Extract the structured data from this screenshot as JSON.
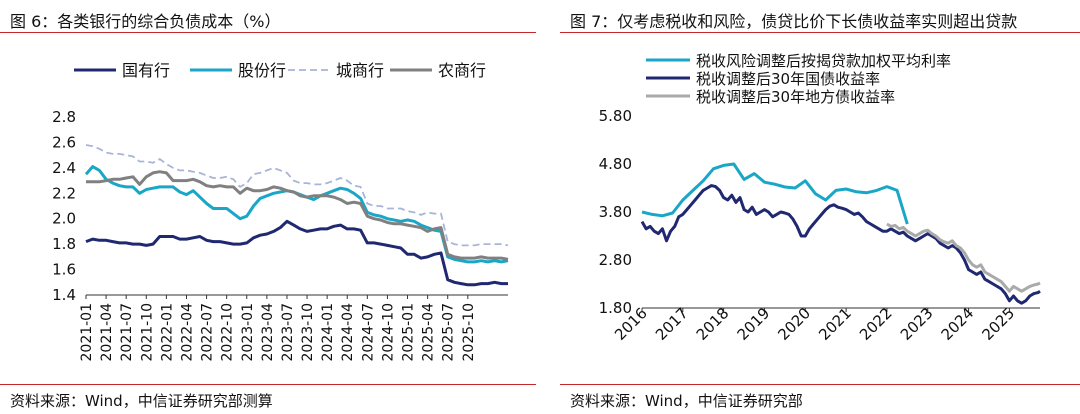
{
  "left": {
    "title": "图 6：各类银行的综合负债成本（%）",
    "source": "资料来源：Wind，中信证券研究部测算",
    "chart_data": {
      "type": "line",
      "title": "各类银行的综合负债成本（%）",
      "xlabel": "",
      "ylabel": "",
      "ylim": [
        1.4,
        2.8
      ],
      "yticks": [
        "2.8",
        "2.6",
        "2.4",
        "2.2",
        "2.0",
        "1.8",
        "1.6",
        "1.4"
      ],
      "xticks": [
        "2021-01",
        "2021-04",
        "2021-07",
        "2021-10",
        "2022-01",
        "2022-04",
        "2022-07",
        "2022-10",
        "2023-01",
        "2023-04",
        "2023-07",
        "2023-10",
        "2024-01",
        "2024-04",
        "2024-07",
        "2024-10",
        "2025-01",
        "2025-04",
        "2025-07",
        "2025-10"
      ],
      "legend_position": "top",
      "series": [
        {
          "name": "国有行",
          "color": "#1f2870",
          "style": "solid",
          "values": [
            1.82,
            1.84,
            1.83,
            1.83,
            1.82,
            1.81,
            1.81,
            1.8,
            1.8,
            1.79,
            1.8,
            1.86,
            1.86,
            1.86,
            1.84,
            1.84,
            1.85,
            1.86,
            1.83,
            1.82,
            1.82,
            1.81,
            1.8,
            1.8,
            1.81,
            1.85,
            1.87,
            1.88,
            1.9,
            1.93,
            1.98,
            1.95,
            1.92,
            1.9,
            1.91,
            1.92,
            1.92,
            1.94,
            1.95,
            1.92,
            1.92,
            1.91,
            1.81,
            1.81,
            1.8,
            1.79,
            1.78,
            1.77,
            1.72,
            1.72,
            1.69,
            1.7,
            1.72,
            1.73,
            1.52,
            1.5,
            1.49,
            1.48,
            1.48,
            1.49,
            1.49,
            1.5,
            1.49,
            1.49
          ]
        },
        {
          "name": "股份行",
          "color": "#1aa6c6",
          "style": "solid",
          "values": [
            2.35,
            2.41,
            2.38,
            2.31,
            2.28,
            2.26,
            2.25,
            2.25,
            2.2,
            2.23,
            2.24,
            2.25,
            2.25,
            2.25,
            2.21,
            2.19,
            2.22,
            2.17,
            2.12,
            2.08,
            2.08,
            2.08,
            2.04,
            2.0,
            2.02,
            2.1,
            2.16,
            2.18,
            2.2,
            2.21,
            2.22,
            2.21,
            2.19,
            2.17,
            2.15,
            2.18,
            2.2,
            2.22,
            2.24,
            2.23,
            2.2,
            2.16,
            2.05,
            2.03,
            2.02,
            2.0,
            1.99,
            1.98,
            1.99,
            1.98,
            1.95,
            1.93,
            1.91,
            1.9,
            1.7,
            1.68,
            1.67,
            1.66,
            1.66,
            1.67,
            1.66,
            1.67,
            1.66,
            1.67
          ]
        },
        {
          "name": "城商行",
          "color": "#a9b5d8",
          "style": "dashed",
          "values": [
            2.58,
            2.57,
            2.55,
            2.52,
            2.51,
            2.51,
            2.5,
            2.49,
            2.45,
            2.45,
            2.44,
            2.47,
            2.43,
            2.4,
            2.38,
            2.38,
            2.37,
            2.36,
            2.34,
            2.32,
            2.32,
            2.33,
            2.31,
            2.25,
            2.28,
            2.35,
            2.36,
            2.38,
            2.4,
            2.38,
            2.36,
            2.3,
            2.28,
            2.28,
            2.27,
            2.27,
            2.28,
            2.3,
            2.32,
            2.3,
            2.26,
            2.25,
            2.12,
            2.1,
            2.1,
            2.08,
            2.08,
            2.08,
            2.06,
            2.05,
            2.03,
            2.05,
            2.04,
            2.04,
            1.82,
            1.8,
            1.79,
            1.79,
            1.79,
            1.8,
            1.8,
            1.8,
            1.8,
            1.79
          ]
        },
        {
          "name": "农商行",
          "color": "#808080",
          "style": "solid",
          "values": [
            2.29,
            2.29,
            2.29,
            2.3,
            2.31,
            2.31,
            2.32,
            2.33,
            2.27,
            2.33,
            2.36,
            2.37,
            2.36,
            2.3,
            2.3,
            2.3,
            2.31,
            2.29,
            2.26,
            2.25,
            2.26,
            2.25,
            2.25,
            2.2,
            2.24,
            2.22,
            2.22,
            2.23,
            2.25,
            2.24,
            2.22,
            2.21,
            2.18,
            2.17,
            2.18,
            2.18,
            2.18,
            2.17,
            2.15,
            2.12,
            2.13,
            2.12,
            2.02,
            2.0,
            1.99,
            1.97,
            1.96,
            1.96,
            1.95,
            1.94,
            1.93,
            1.9,
            1.92,
            1.93,
            1.72,
            1.7,
            1.69,
            1.69,
            1.69,
            1.7,
            1.69,
            1.69,
            1.69,
            1.68
          ]
        }
      ]
    }
  },
  "right": {
    "title": "图 7：仅考虑税收和风险，债贷比价下长债收益率实则超出贷款",
    "source": "资料来源：Wind，中信证券研究部",
    "chart_data": {
      "type": "line",
      "title": "仅考虑税收和风险，债贷比价下长债收益率实则超出贷款",
      "xlabel": "",
      "ylabel": "",
      "ylim": [
        1.8,
        5.8
      ],
      "yticks": [
        "5.80",
        "4.80",
        "3.80",
        "2.80",
        "1.80"
      ],
      "xlim": [
        2016.0,
        2025.75
      ],
      "xticks": [
        "2016",
        "2017",
        "2018",
        "2019",
        "2020",
        "2021",
        "2022",
        "2023",
        "2024",
        "2025"
      ],
      "legend_position": "top-left",
      "series": [
        {
          "name": "税收风险调整后按揭贷款加权平均利率",
          "color": "#1aa6c6",
          "style": "solid",
          "x": [
            2016.0,
            2016.25,
            2016.5,
            2016.75,
            2017.0,
            2017.25,
            2017.5,
            2017.75,
            2018.0,
            2018.25,
            2018.5,
            2018.75,
            2019.0,
            2019.25,
            2019.5,
            2019.75,
            2020.0,
            2020.25,
            2020.5,
            2020.75,
            2021.0,
            2021.25,
            2021.5,
            2021.75,
            2022.0,
            2022.25,
            2022.5
          ],
          "values": [
            3.8,
            3.75,
            3.72,
            3.78,
            4.05,
            4.25,
            4.45,
            4.7,
            4.77,
            4.8,
            4.48,
            4.6,
            4.42,
            4.38,
            4.32,
            4.3,
            4.45,
            4.18,
            4.05,
            4.25,
            4.28,
            4.22,
            4.2,
            4.25,
            4.33,
            4.25,
            3.55
          ]
        },
        {
          "name": "税收调整后30年国债收益率",
          "color": "#1f2870",
          "style": "solid",
          "x": [
            2016.0,
            2016.1,
            2016.2,
            2016.3,
            2016.4,
            2016.5,
            2016.6,
            2016.7,
            2016.8,
            2016.9,
            2017.0,
            2017.1,
            2017.2,
            2017.3,
            2017.4,
            2017.5,
            2017.6,
            2017.7,
            2017.8,
            2017.9,
            2018.0,
            2018.1,
            2018.2,
            2018.3,
            2018.4,
            2018.5,
            2018.6,
            2018.7,
            2018.8,
            2018.9,
            2019.0,
            2019.1,
            2019.2,
            2019.3,
            2019.4,
            2019.5,
            2019.6,
            2019.7,
            2019.8,
            2019.9,
            2020.0,
            2020.1,
            2020.2,
            2020.3,
            2020.4,
            2020.5,
            2020.6,
            2020.7,
            2020.8,
            2020.9,
            2021.0,
            2021.1,
            2021.2,
            2021.3,
            2021.4,
            2021.5,
            2021.6,
            2021.7,
            2021.8,
            2021.9,
            2022.0,
            2022.1,
            2022.2,
            2022.3,
            2022.4,
            2022.5,
            2022.6,
            2022.7,
            2022.8,
            2022.9,
            2023.0,
            2023.1,
            2023.2,
            2023.3,
            2023.4,
            2023.5,
            2023.6,
            2023.7,
            2023.8,
            2023.9,
            2024.0,
            2024.1,
            2024.2,
            2024.3,
            2024.4,
            2024.5,
            2024.6,
            2024.7,
            2024.8,
            2024.9,
            2025.0,
            2025.1,
            2025.2,
            2025.3,
            2025.4,
            2025.5,
            2025.6,
            2025.7,
            2025.75
          ],
          "values": [
            3.6,
            3.45,
            3.5,
            3.4,
            3.35,
            3.45,
            3.2,
            3.4,
            3.5,
            3.7,
            3.75,
            3.85,
            3.95,
            4.05,
            4.15,
            4.25,
            4.3,
            4.35,
            4.33,
            4.25,
            4.1,
            4.05,
            4.15,
            4.0,
            4.1,
            3.85,
            3.8,
            3.9,
            3.75,
            3.8,
            3.85,
            3.8,
            3.7,
            3.75,
            3.8,
            3.78,
            3.75,
            3.65,
            3.5,
            3.3,
            3.3,
            3.45,
            3.55,
            3.65,
            3.75,
            3.85,
            3.92,
            3.95,
            3.9,
            3.88,
            3.85,
            3.8,
            3.75,
            3.78,
            3.7,
            3.6,
            3.55,
            3.5,
            3.45,
            3.4,
            3.4,
            3.45,
            3.4,
            3.35,
            3.38,
            3.3,
            3.25,
            3.2,
            3.25,
            3.3,
            3.35,
            3.3,
            3.25,
            3.15,
            3.1,
            3.05,
            3.1,
            3.05,
            2.95,
            2.8,
            2.6,
            2.55,
            2.5,
            2.55,
            2.4,
            2.35,
            2.3,
            2.25,
            2.2,
            2.1,
            1.95,
            2.05,
            1.95,
            1.9,
            1.95,
            2.05,
            2.1,
            2.12,
            2.15
          ]
        },
        {
          "name": "税收调整后30年地方债收益率",
          "color": "#aaaaaa",
          "style": "solid",
          "x": [
            2022.0,
            2022.1,
            2022.2,
            2022.3,
            2022.4,
            2022.5,
            2022.6,
            2022.7,
            2022.8,
            2022.9,
            2023.0,
            2023.1,
            2023.2,
            2023.3,
            2023.4,
            2023.5,
            2023.6,
            2023.7,
            2023.8,
            2023.9,
            2024.0,
            2024.1,
            2024.2,
            2024.3,
            2024.4,
            2024.5,
            2024.6,
            2024.7,
            2024.8,
            2024.9,
            2025.0,
            2025.1,
            2025.2,
            2025.3,
            2025.4,
            2025.5,
            2025.6,
            2025.7,
            2025.75
          ],
          "values": [
            3.55,
            3.5,
            3.52,
            3.45,
            3.48,
            3.4,
            3.35,
            3.3,
            3.35,
            3.4,
            3.42,
            3.35,
            3.3,
            3.22,
            3.18,
            3.15,
            3.2,
            3.1,
            3.05,
            2.95,
            2.8,
            2.7,
            2.65,
            2.7,
            2.55,
            2.5,
            2.45,
            2.4,
            2.35,
            2.25,
            2.15,
            2.25,
            2.2,
            2.15,
            2.2,
            2.25,
            2.28,
            2.3,
            2.32
          ]
        }
      ]
    }
  }
}
